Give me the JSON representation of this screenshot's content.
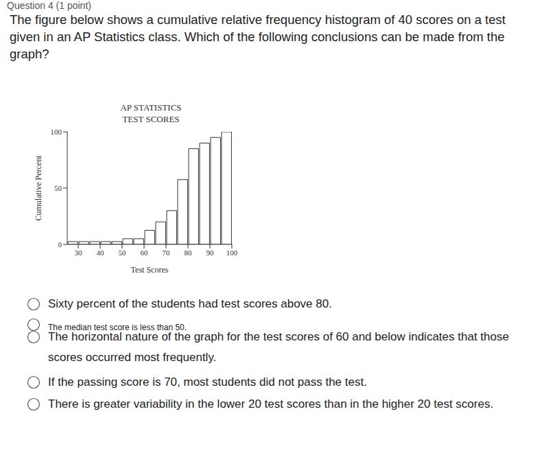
{
  "header": "Question 4 (1 point)",
  "question": "The figure below shows a cumulative relative frequency histogram of 40 scores on a test given in an AP Statistics class. Which of the following conclusions can be made from the graph?",
  "chart_data": {
    "type": "histogram",
    "title": [
      "AP STATISTICS",
      "TEST SCORES"
    ],
    "x_label": "Test Scores",
    "y_label": "Cumulative Percent",
    "bins": [
      25,
      30,
      35,
      40,
      45,
      50,
      55,
      60,
      65,
      70,
      75,
      80,
      85,
      90,
      95,
      100
    ],
    "values": [
      2.5,
      2.5,
      2.5,
      2.5,
      2.5,
      5,
      5,
      12.5,
      20,
      30,
      57.5,
      85,
      90,
      95,
      100
    ],
    "color": "#ffffff",
    "xlim": [
      25,
      100
    ],
    "xticks": [
      30,
      40,
      50,
      60,
      70,
      80,
      90,
      100
    ],
    "ylim": [
      0,
      100
    ],
    "yticks": [
      0,
      50,
      100
    ],
    "grid": false
  },
  "options": [
    "Sixty percent of the students had test scores above 80.",
    "The median test score is less than 50.",
    "The horizontal nature of the graph for the test scores of 60 and below indicates that those scores occurred most frequently.",
    "If the passing score is 70, most students did not pass the test.",
    "There is greater variability in the lower 20 test scores than in the higher 20 test scores."
  ]
}
